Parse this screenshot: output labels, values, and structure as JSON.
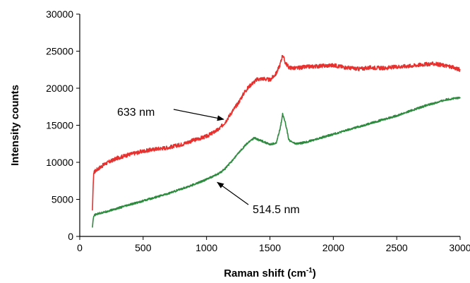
{
  "chart_data": {
    "type": "line",
    "title": "",
    "xlabel": "Raman shift (cm",
    "xlabel_superscript": "-1",
    "xlabel_suffix": ")",
    "ylabel": "Intensity counts",
    "xlim": [
      0,
      3000
    ],
    "ylim": [
      0,
      30000
    ],
    "x_ticks": [
      0,
      500,
      1000,
      1500,
      2000,
      2500,
      3000
    ],
    "y_ticks": [
      0,
      5000,
      10000,
      15000,
      20000,
      25000,
      30000
    ],
    "x_tick_labels": [
      "0",
      "500",
      "1000",
      "1500",
      "2000",
      "2500",
      "3000"
    ],
    "y_tick_labels": [
      "0",
      "5000",
      "10000",
      "15000",
      "20000",
      "25000",
      "30000"
    ],
    "grid": false,
    "legend": "none",
    "series": [
      {
        "name": "633 nm",
        "color": "#e8312e",
        "x": [
          100,
          105,
          110,
          120,
          150,
          200,
          300,
          400,
          500,
          600,
          700,
          800,
          900,
          1000,
          1100,
          1150,
          1200,
          1250,
          1300,
          1350,
          1400,
          1450,
          1500,
          1550,
          1580,
          1600,
          1620,
          1650,
          1700,
          1800,
          1900,
          2000,
          2100,
          2200,
          2300,
          2400,
          2500,
          2600,
          2700,
          2800,
          2900,
          3000
        ],
        "values": [
          3500,
          6500,
          8500,
          8800,
          9200,
          9800,
          10600,
          11100,
          11500,
          11800,
          12000,
          12400,
          13000,
          13500,
          14500,
          15500,
          16800,
          18000,
          19500,
          20500,
          21200,
          21300,
          21100,
          22000,
          23200,
          24500,
          23500,
          22800,
          22700,
          22900,
          23000,
          23100,
          22800,
          22600,
          22800,
          22700,
          22900,
          23000,
          23200,
          23300,
          23000,
          22500
        ]
      },
      {
        "name": "514.5 nm",
        "color": "#2e8a3e",
        "x": [
          100,
          105,
          110,
          120,
          150,
          200,
          300,
          400,
          500,
          600,
          700,
          800,
          900,
          1000,
          1100,
          1150,
          1200,
          1250,
          1300,
          1350,
          1380,
          1400,
          1450,
          1500,
          1550,
          1580,
          1600,
          1620,
          1650,
          1700,
          1750,
          1800,
          1900,
          2000,
          2100,
          2200,
          2300,
          2400,
          2500,
          2600,
          2700,
          2800,
          2900,
          3000
        ],
        "values": [
          1200,
          2200,
          2700,
          2900,
          3100,
          3300,
          3800,
          4300,
          4800,
          5300,
          5800,
          6400,
          7000,
          7700,
          8500,
          9200,
          10200,
          11200,
          12200,
          13000,
          13300,
          13100,
          12800,
          12400,
          12600,
          14500,
          16500,
          15500,
          13000,
          12500,
          12600,
          12800,
          13300,
          13800,
          14300,
          14800,
          15300,
          15800,
          16300,
          16900,
          17500,
          18000,
          18500,
          18700
        ]
      }
    ],
    "annotations": [
      {
        "text": "633 nm",
        "target_x": 1135,
        "target_y": 15800
      },
      {
        "text": "514.5 nm",
        "target_x": 1085,
        "target_y": 7300
      }
    ]
  }
}
